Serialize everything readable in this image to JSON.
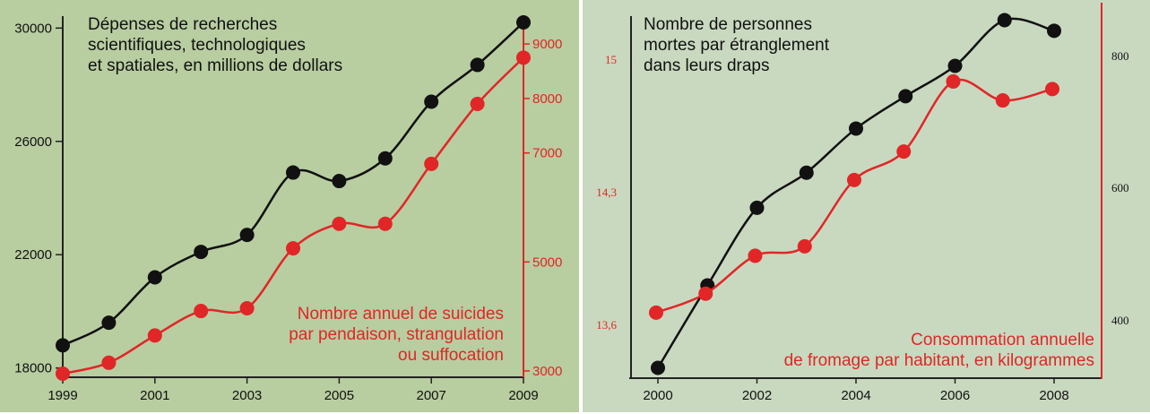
{
  "colors": {
    "black_series": "#111111",
    "red_series": "#e02626",
    "left_bg": "#b8cda0",
    "right_bg": "#c9d9bf"
  },
  "chart_data": [
    {
      "type": "line",
      "title": "Dépenses de recherches\nscientifiques, technologiques\net spatiales, en millions de dollars",
      "red_label": "Nombre annuel de suicides\npar pendaison, strangulation\nou suffocation",
      "x": [
        1999,
        2000,
        2001,
        2002,
        2003,
        2004,
        2005,
        2006,
        2007,
        2008,
        2009
      ],
      "x_ticks": [
        "1999",
        "2001",
        "2003",
        "2005",
        "2007",
        "2009"
      ],
      "y_left_ticks": [
        "30000",
        "26000",
        "22000",
        "18000"
      ],
      "y_right_ticks": [
        "9000",
        "8000",
        "7000",
        "5000",
        "3000"
      ],
      "ylim_left": [
        17800,
        30200
      ],
      "ylim_right": [
        2900,
        9150
      ],
      "series": [
        {
          "axis": "left",
          "color": "#111111",
          "values": [
            18800,
            19600,
            21200,
            22100,
            22700,
            24900,
            24600,
            25400,
            27400,
            28700,
            30200
          ]
        },
        {
          "axis": "right",
          "color": "#e02626",
          "values": [
            2950,
            3150,
            3650,
            4100,
            4150,
            5250,
            5700,
            5700,
            6800,
            7900,
            8750
          ]
        }
      ]
    },
    {
      "type": "line",
      "title": "Nombre de personnes\nmortes par étranglement\ndans leurs draps",
      "red_label": "Consommation annuelle\nde fromage par habitant, en kilogrammes",
      "x": [
        2000,
        2001,
        2002,
        2003,
        2004,
        2005,
        2006,
        2007,
        2008
      ],
      "x_ticks": [
        "2000",
        "2002",
        "2004",
        "2006",
        "2008"
      ],
      "y_left_ticks": [
        "15",
        "14,3",
        "13,6"
      ],
      "y_right_ticks": [
        "800",
        "600",
        "400"
      ],
      "series": [
        {
          "axis": "left",
          "color": "#111111",
          "values": [
            327,
            536,
            733,
            822,
            934,
            1016,
            1093,
            1209,
            1182
          ]
        },
        {
          "axis": "right",
          "color": "#e02626",
          "values": [
            13.7,
            13.8,
            14.0,
            14.05,
            14.4,
            14.55,
            14.92,
            14.82,
            14.88
          ]
        }
      ]
    }
  ]
}
